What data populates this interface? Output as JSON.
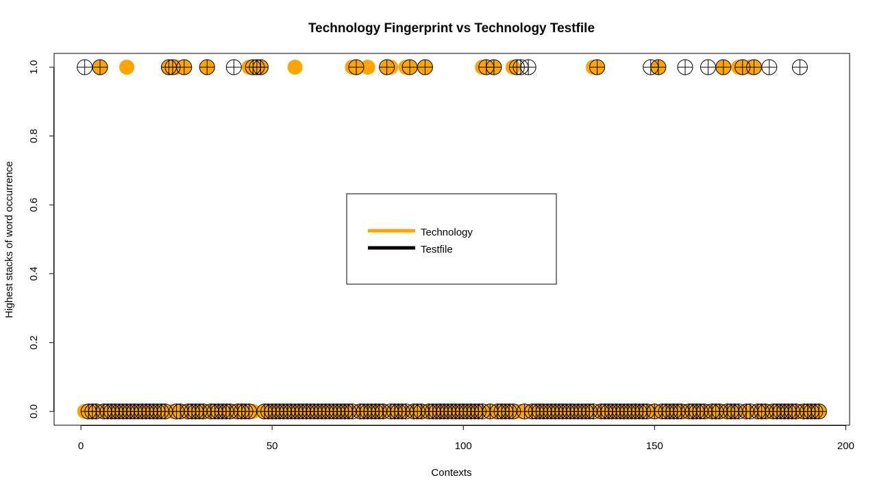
{
  "chart_data": {
    "type": "scatter",
    "title": "Technology Fingerprint vs Technology Testfile",
    "xlabel": "Contexts",
    "ylabel": "Highest stacks of word occurrence",
    "xlim": [
      -7,
      201
    ],
    "ylim": [
      -0.04,
      1.04
    ],
    "x_ticks": [
      "0",
      "50",
      "100",
      "150",
      "200"
    ],
    "y_ticks": [
      "0.0",
      "0.2",
      "0.4",
      "0.6",
      "0.8",
      "1.0"
    ],
    "grid": false,
    "legend": {
      "placement": "center",
      "entries": [
        {
          "label": "Technology",
          "color": "#FFA500"
        },
        {
          "label": "Testfile",
          "color": "#000000"
        }
      ]
    },
    "series": [
      {
        "name": "Technology",
        "marker": "filled-circle",
        "color": "#FFA500",
        "x_at_1": [
          5,
          12,
          23,
          25,
          27,
          33,
          44,
          46,
          47,
          56,
          71,
          72,
          75,
          80,
          81,
          85,
          86,
          90,
          105,
          106,
          108,
          113,
          134,
          135,
          151,
          168,
          172,
          173,
          175,
          176
        ],
        "x_at_0": "all remaining contexts 1-193"
      },
      {
        "name": "Testfile",
        "marker": "circle-plus",
        "color": "#000000",
        "x_at_1": [
          1,
          5,
          23,
          24,
          27,
          33,
          40,
          45,
          46,
          47,
          72,
          80,
          86,
          90,
          106,
          108,
          114,
          115,
          117,
          135,
          149,
          151,
          158,
          164,
          168,
          173,
          176,
          180,
          188
        ],
        "x_at_0": "all remaining contexts 1-193"
      }
    ],
    "n_contexts": 193
  }
}
